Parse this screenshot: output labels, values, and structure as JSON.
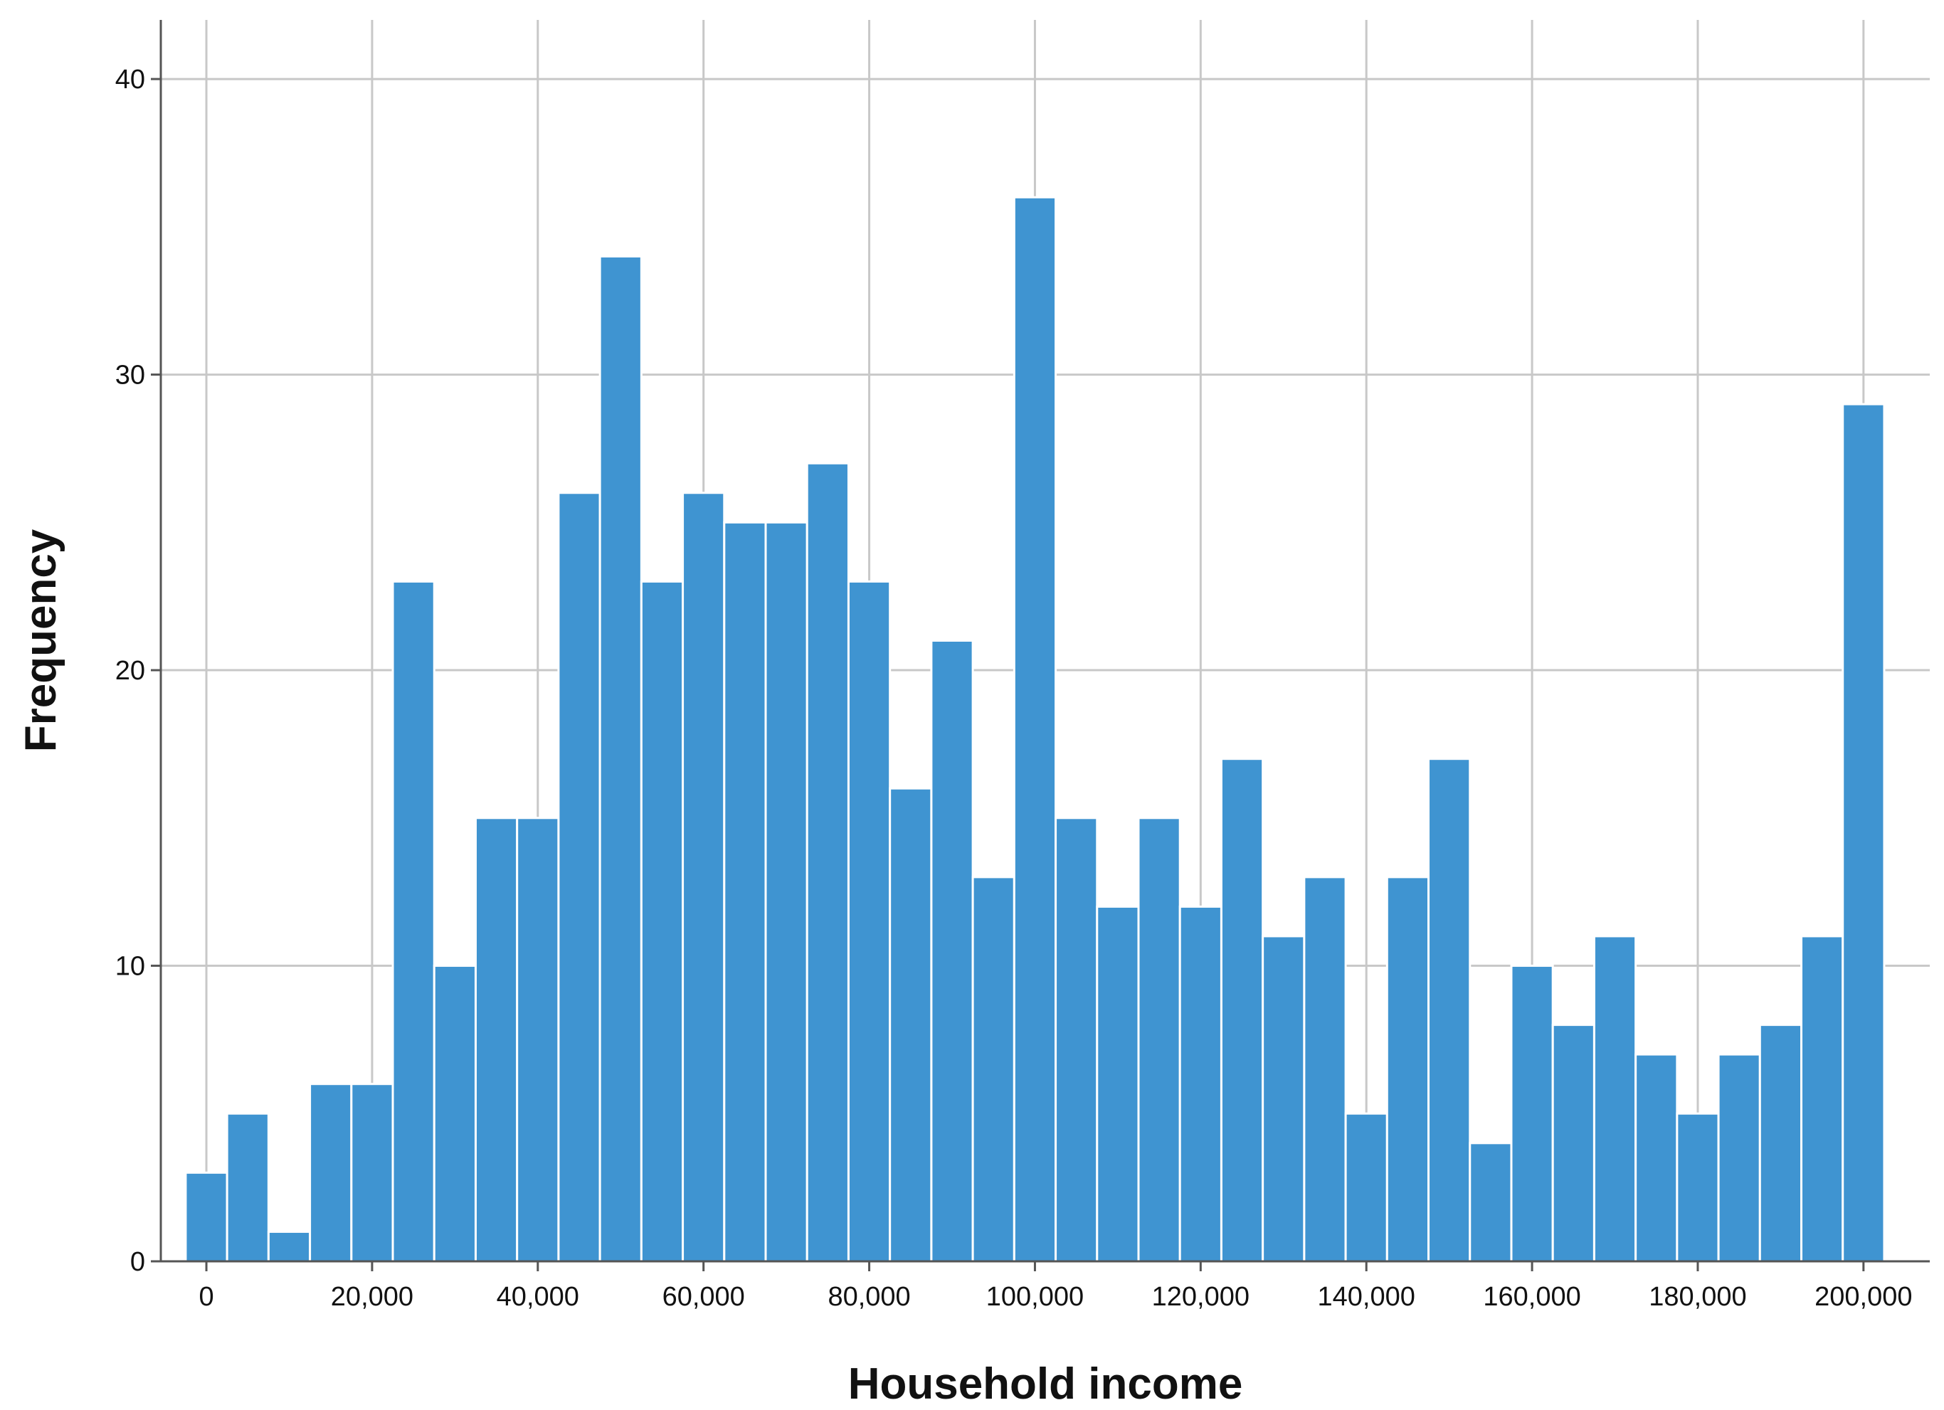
{
  "chart_data": {
    "type": "bar",
    "subtype": "histogram",
    "title": "",
    "xlabel": "Household income",
    "ylabel": "Frequency",
    "bin_width": 5000,
    "bin_centers": [
      0,
      5000,
      10000,
      15000,
      20000,
      25000,
      30000,
      35000,
      40000,
      45000,
      50000,
      55000,
      60000,
      65000,
      70000,
      75000,
      80000,
      85000,
      90000,
      95000,
      100000,
      105000,
      110000,
      115000,
      120000,
      125000,
      130000,
      135000,
      140000,
      145000,
      150000,
      155000,
      160000,
      165000,
      170000,
      175000,
      180000,
      185000,
      190000,
      195000,
      200000
    ],
    "values": [
      3,
      5,
      1,
      6,
      6,
      23,
      10,
      15,
      15,
      26,
      34,
      23,
      26,
      25,
      25,
      27,
      23,
      16,
      21,
      13,
      36,
      15,
      12,
      15,
      12,
      17,
      11,
      13,
      5,
      13,
      17,
      4,
      10,
      8,
      11,
      7,
      5,
      7,
      8,
      11,
      29
    ],
    "xlim": [
      -5500,
      208000
    ],
    "ylim": [
      0,
      42
    ],
    "x_ticks": [
      0,
      20000,
      40000,
      60000,
      80000,
      100000,
      120000,
      140000,
      160000,
      180000,
      200000
    ],
    "x_tick_labels": [
      "0",
      "20,000",
      "40,000",
      "60,000",
      "80,000",
      "100,000",
      "120,000",
      "140,000",
      "160,000",
      "180,000",
      "200,000"
    ],
    "y_ticks": [
      0,
      10,
      20,
      30,
      40
    ],
    "y_tick_labels": [
      "0",
      "10",
      "20",
      "30",
      "40"
    ],
    "grid": true,
    "legend": "none",
    "colors": {
      "bar_fill": "#3f94d1",
      "bar_edge": "#ffffff",
      "grid": "#c8c8c8",
      "axis": "#555555"
    }
  }
}
